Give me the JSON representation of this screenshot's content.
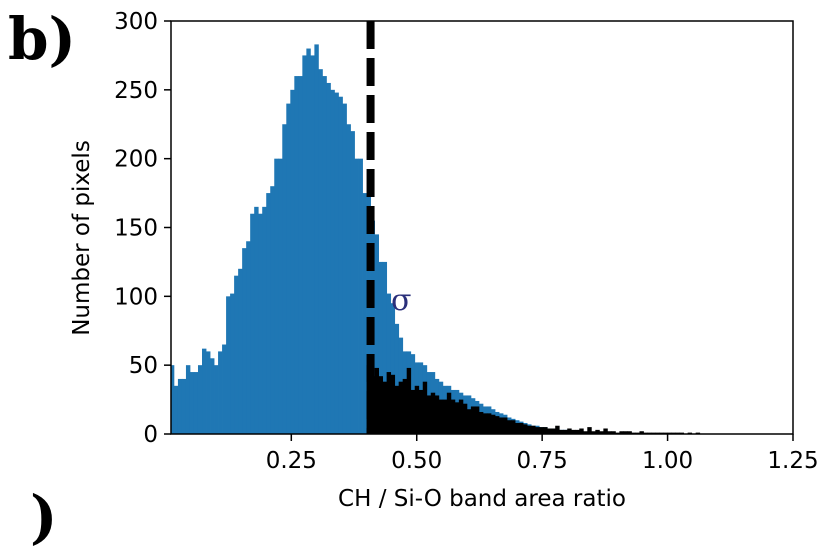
{
  "panel_label": "b)",
  "next_panel_label": ")",
  "annotation": "σ",
  "chart_data": {
    "type": "bar",
    "title": "",
    "xlabel": "CH / Si-O band area ratio",
    "ylabel": "Number of pixels",
    "xlim": [
      0.0,
      1.25
    ],
    "ylim": [
      0,
      300
    ],
    "xticks": [
      0.25,
      0.5,
      0.75,
      1.0,
      1.25
    ],
    "xtick_labels": [
      "0.25",
      "0.50",
      "0.75",
      "1.00",
      "1.25"
    ],
    "yticks": [
      0,
      50,
      100,
      150,
      200,
      250,
      300
    ],
    "ytick_labels": [
      "0",
      "50",
      "100",
      "150",
      "200",
      "250",
      "300"
    ],
    "threshold_x": 0.4,
    "bin_width": 0.008,
    "grid": false,
    "series": [
      {
        "color": "#1f77b4",
        "x_start": 0.0,
        "values": [
          30,
          50,
          35,
          40,
          40,
          50,
          45,
          45,
          50,
          62,
          60,
          55,
          50,
          60,
          65,
          100,
          102,
          115,
          120,
          135,
          140,
          160,
          165,
          160,
          165,
          175,
          180,
          200,
          200,
          225,
          240,
          250,
          260,
          260,
          275,
          280,
          275,
          283,
          265,
          260,
          255,
          250,
          248,
          245,
          240,
          225,
          220,
          200,
          200,
          175,
          175,
          155,
          145,
          125,
          125,
          102,
          95,
          80,
          70,
          60,
          60,
          58,
          52,
          52,
          50,
          45,
          45,
          40,
          38,
          35,
          35,
          32,
          32,
          30,
          28,
          28,
          26,
          24,
          22,
          20,
          20,
          18,
          16,
          15,
          14,
          12,
          11,
          10,
          9,
          8,
          7,
          6,
          6,
          5,
          5,
          4,
          4,
          3,
          3,
          3,
          2,
          2,
          2,
          2,
          1,
          1,
          1,
          1,
          1,
          1
        ]
      },
      {
        "color": "#000000",
        "x_start": 0.4,
        "values": [
          50,
          42,
          48,
          42,
          38,
          45,
          43,
          35,
          38,
          40,
          48,
          32,
          35,
          32,
          38,
          28,
          30,
          28,
          25,
          25,
          30,
          25,
          23,
          25,
          22,
          18,
          20,
          20,
          16,
          15,
          15,
          14,
          13,
          12,
          12,
          10,
          10,
          8,
          8,
          7,
          6,
          6,
          5,
          5,
          5,
          4,
          4,
          6,
          3,
          3,
          4,
          3,
          3,
          4,
          2,
          5,
          2,
          3,
          2,
          4,
          2,
          2,
          1,
          2,
          2,
          2,
          1,
          1,
          2,
          1,
          1,
          1,
          1,
          1,
          1,
          1,
          1,
          1,
          1,
          0,
          1,
          0,
          1
        ]
      }
    ]
  }
}
